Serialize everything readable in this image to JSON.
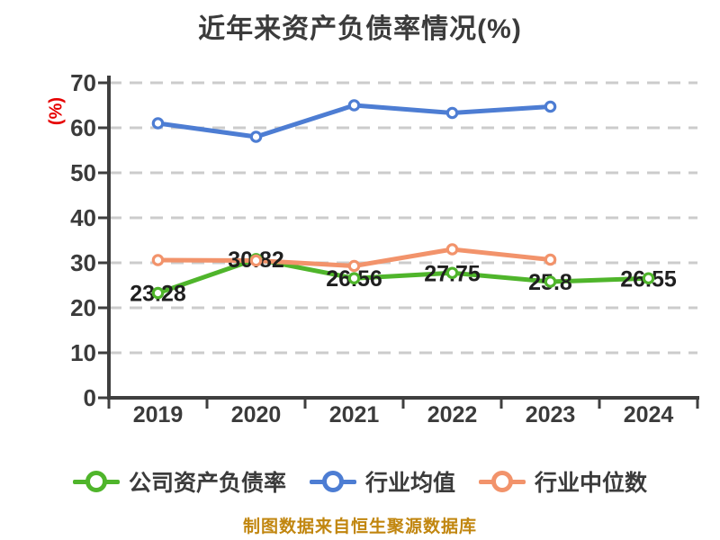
{
  "title": "近年来资产负债率情况(%)",
  "footer": "制图数据来自恒生聚源数据库",
  "colors": {
    "title_text": "#3b3b3b",
    "tick_text": "#3b3b3b",
    "data_label_text": "#1f1f1f",
    "y_axis_label_red": "#e60000",
    "footer_gold": "#c1860f",
    "axis": "#3f3f3f",
    "gridline": "#cccccc",
    "series_company_green": "#4fb52b",
    "series_mean_blue": "#4d7dd3",
    "series_median_orange": "#f2936b",
    "marker_fill": "#ffffff",
    "background": "#ffffff"
  },
  "chart_data": {
    "type": "line",
    "title": "近年来资产负债率情况(%)",
    "xlabel": "",
    "ylabel": "(%)",
    "categories": [
      "2019",
      "2020",
      "2021",
      "2022",
      "2023",
      "2024"
    ],
    "ylim": [
      0,
      70
    ],
    "ytick_step": 10,
    "grid": "horizontal-dashed",
    "legend_position": "bottom",
    "series": [
      {
        "id": "company-debt-ratio",
        "name": "公司资产负债率",
        "color": "#4fb52b",
        "values": [
          23.28,
          30.82,
          26.56,
          27.75,
          25.8,
          26.55
        ],
        "point_labels": [
          "23.28",
          "30.82",
          "26.56",
          "27.75",
          "25.8",
          "26.55"
        ],
        "labels_shown": true
      },
      {
        "id": "industry-mean",
        "name": "行业均值",
        "color": "#4d7dd3",
        "values": [
          61,
          58,
          65,
          63.3,
          64.7
        ],
        "labels_shown": false
      },
      {
        "id": "industry-median",
        "name": "行业中位数",
        "color": "#f2936b",
        "values": [
          30.6,
          30.5,
          29.3,
          33,
          30.7
        ],
        "labels_shown": false
      }
    ]
  },
  "legend": {
    "items": [
      {
        "id": "company-debt-ratio",
        "label": "公司资产负债率",
        "color": "#4fb52b"
      },
      {
        "id": "industry-mean",
        "label": "行业均值",
        "color": "#4d7dd3"
      },
      {
        "id": "industry-median",
        "label": "行业中位数",
        "color": "#f2936b"
      }
    ]
  }
}
